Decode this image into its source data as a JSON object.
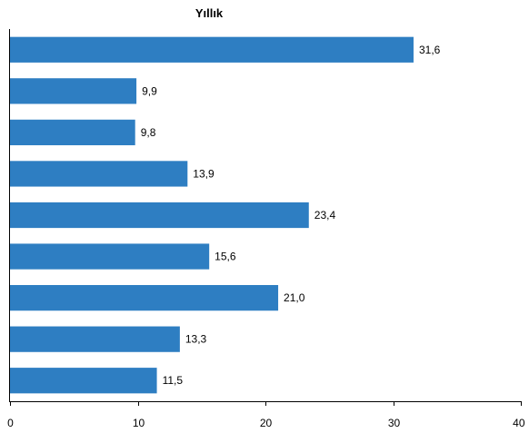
{
  "chart_data": {
    "type": "bar",
    "orientation": "horizontal",
    "title": "Yıllık",
    "categories": [
      "",
      "",
      "",
      "",
      "",
      "",
      "",
      "",
      ""
    ],
    "values": [
      31.6,
      9.9,
      9.8,
      13.9,
      23.4,
      15.6,
      21.0,
      13.3,
      11.5
    ],
    "value_labels": [
      "31,6",
      "9,9",
      "9,8",
      "13,9",
      "23,4",
      "15,6",
      "21,0",
      "13,3",
      "11,5"
    ],
    "x_ticks": [
      "0",
      "10",
      "20",
      "30",
      "40"
    ],
    "xlim": [
      0,
      40
    ],
    "xlabel": "",
    "ylabel": "",
    "grid": false,
    "legend": "none",
    "colors": {
      "bar": "#2e7ec2",
      "axis": "#000000"
    }
  }
}
